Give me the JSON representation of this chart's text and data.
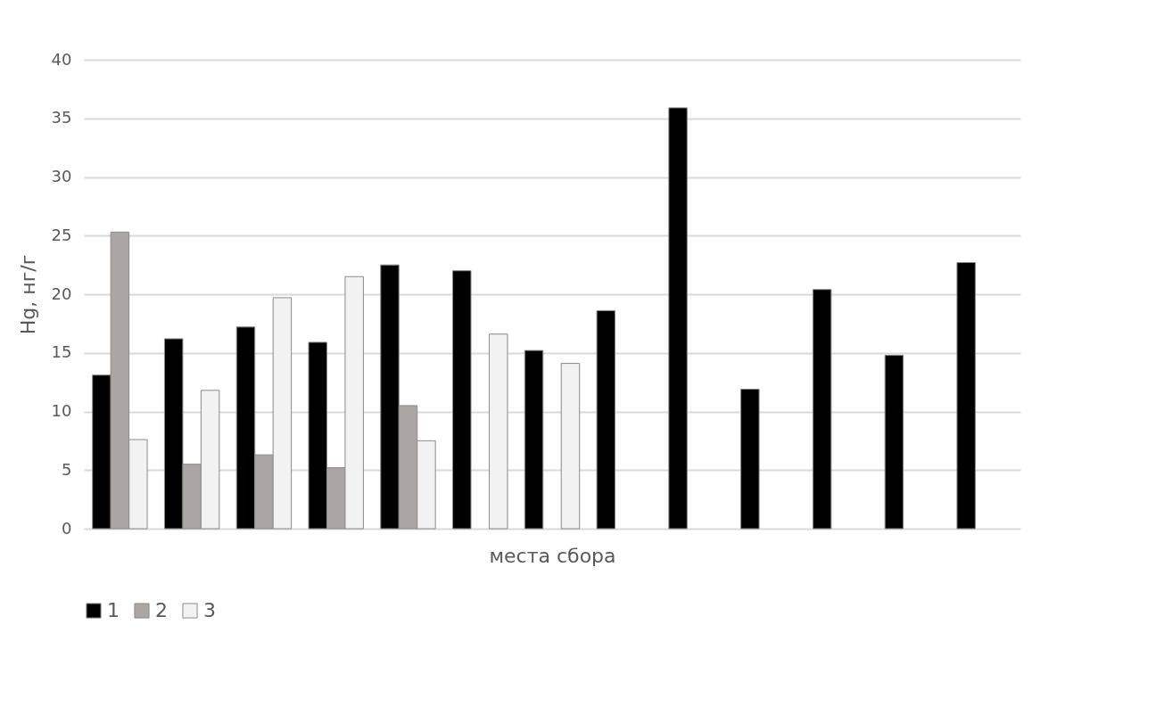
{
  "chart_data": {
    "type": "bar",
    "xlabel": "места сбора",
    "ylabel": "Hg, нг/г",
    "categories": [
      null,
      null,
      null,
      null,
      null,
      null,
      null,
      null,
      null,
      null,
      null,
      null,
      null
    ],
    "series": [
      {
        "name": "1",
        "color": "#000000",
        "values": [
          13.1,
          16.2,
          17.2,
          15.9,
          22.5,
          22.0,
          15.2,
          18.6,
          35.9,
          11.9,
          20.4,
          14.8,
          22.7
        ]
      },
      {
        "name": "2",
        "color": "#aba6a4",
        "values": [
          25.3,
          5.5,
          6.3,
          5.2,
          10.5,
          null,
          null,
          null,
          null,
          null,
          null,
          null,
          null
        ]
      },
      {
        "name": "3",
        "color": "#f2f2f2",
        "values": [
          7.6,
          11.8,
          19.7,
          21.5,
          7.5,
          16.6,
          14.1,
          null,
          null,
          null,
          null,
          null,
          null
        ]
      }
    ],
    "ylim": [
      0,
      40
    ],
    "yticks": [
      0,
      5,
      10,
      15,
      20,
      25,
      30,
      35,
      40
    ],
    "grid": "y",
    "legend": "bottom"
  }
}
